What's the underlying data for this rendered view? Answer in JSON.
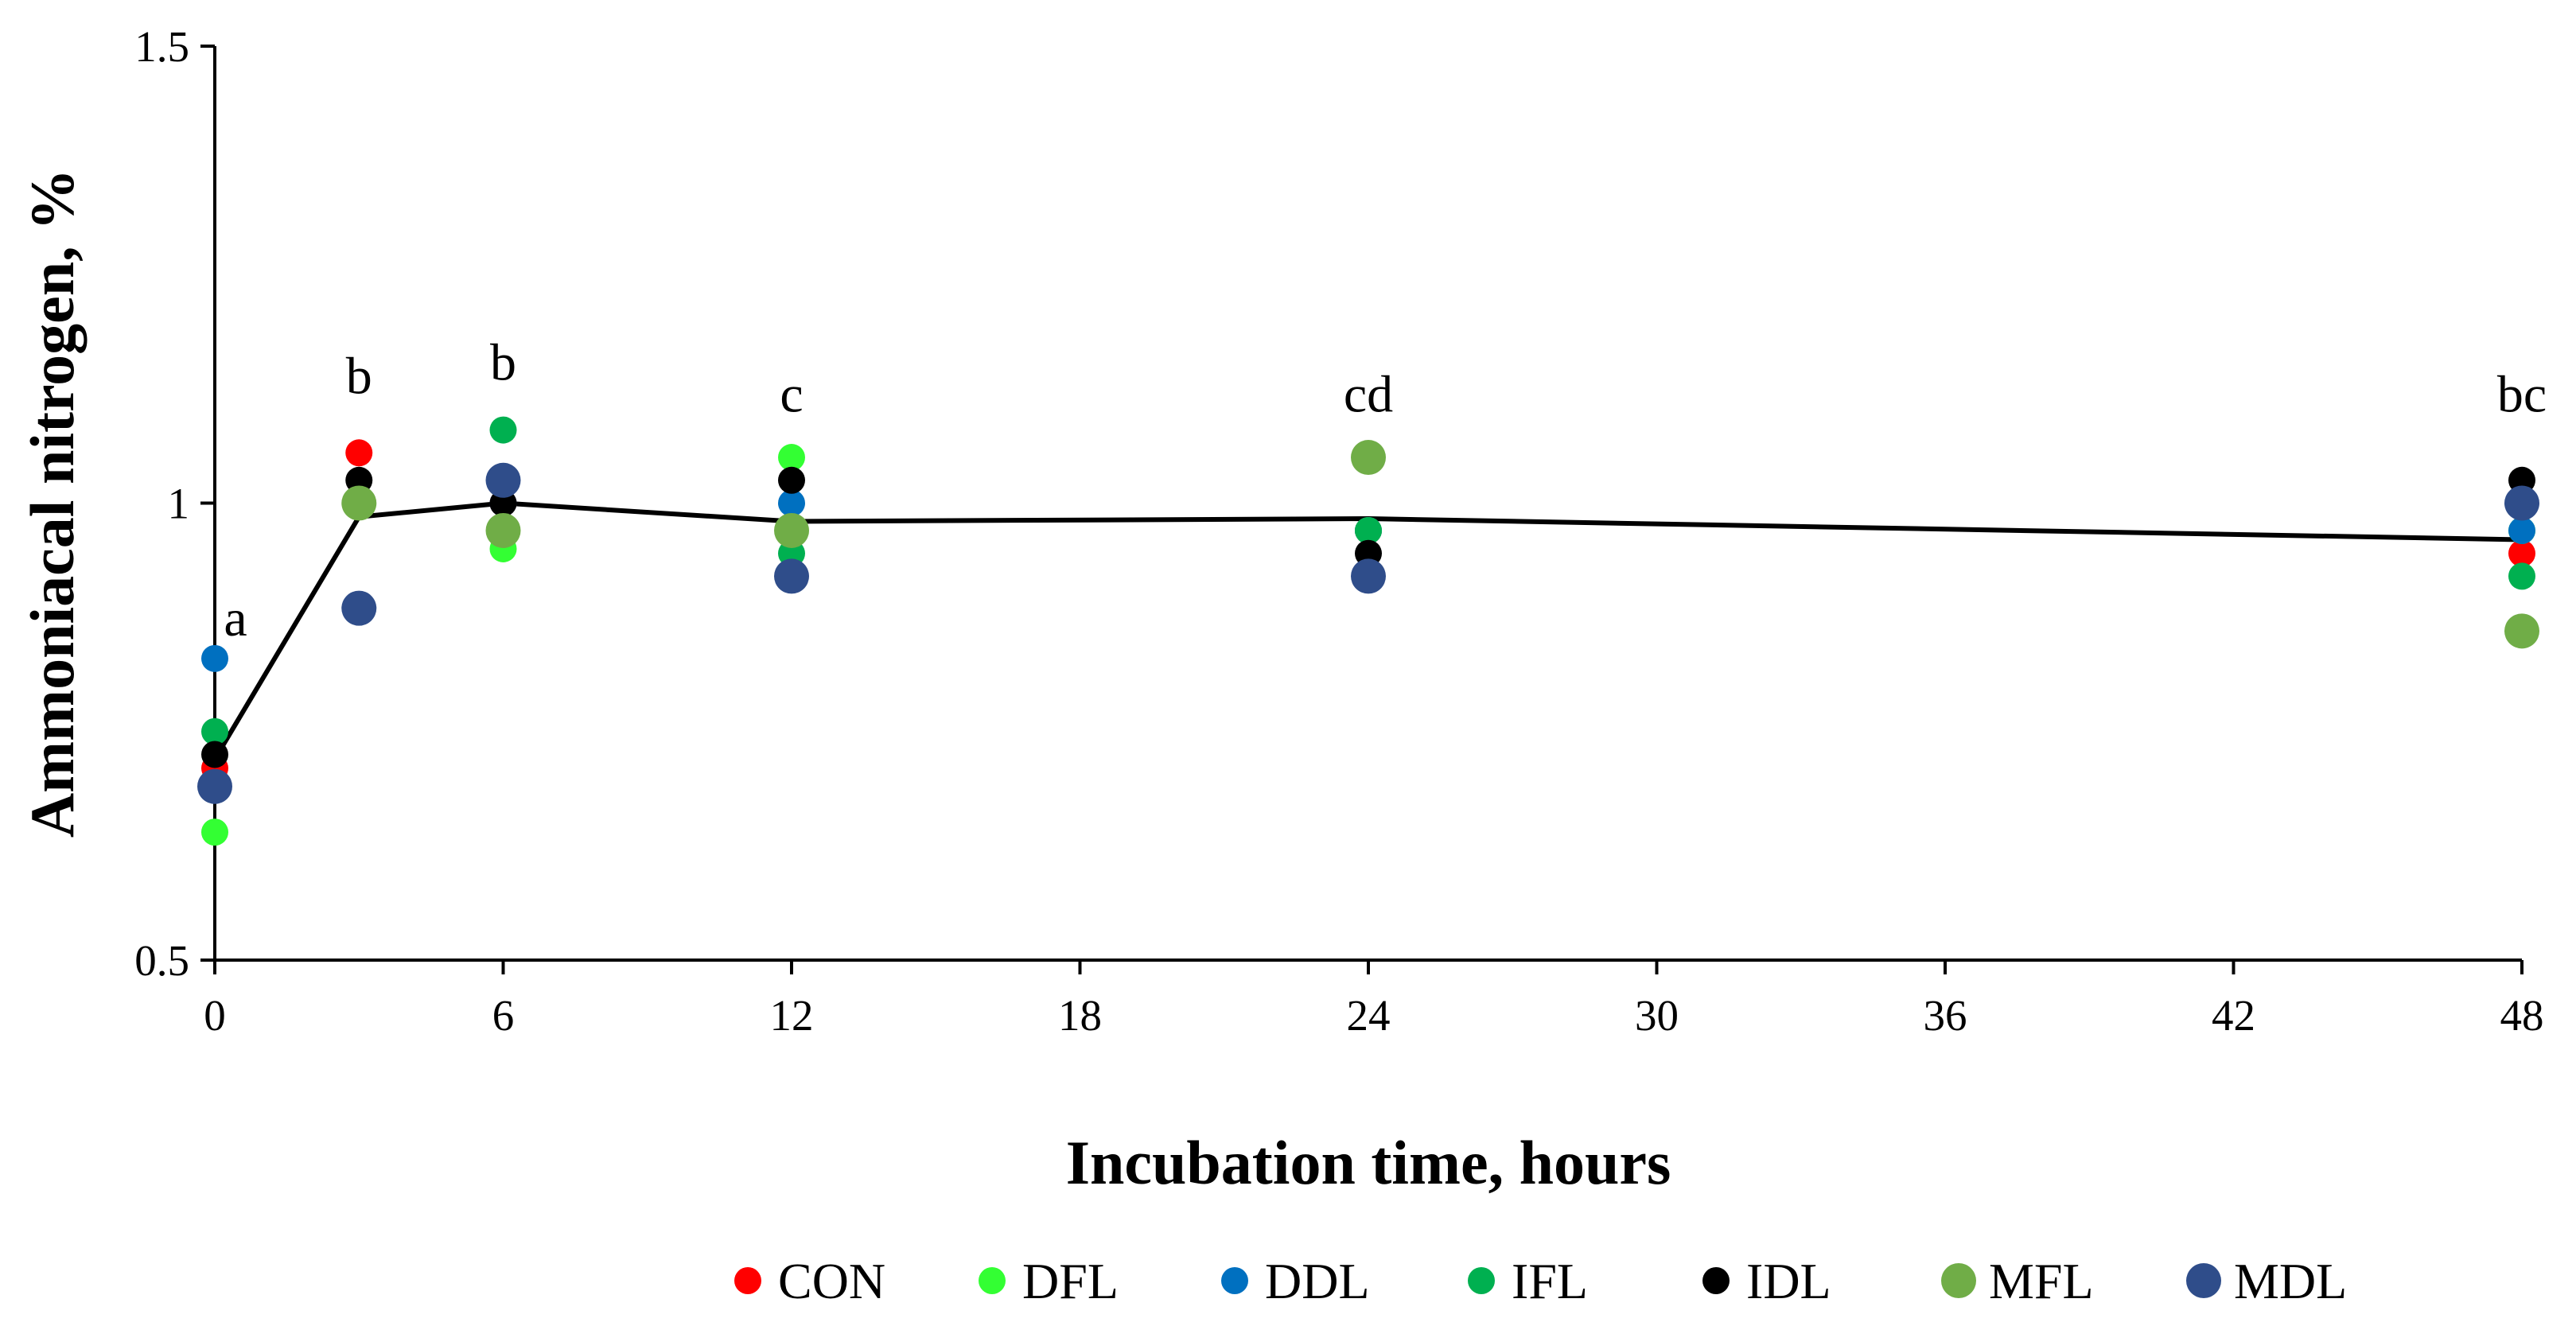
{
  "chart_data": {
    "type": "scatter",
    "xlabel": "Incubation time, hours",
    "ylabel": "Ammoniacal nitrogen, %",
    "xlim": [
      0,
      48
    ],
    "ylim": [
      0.5,
      1.5
    ],
    "x_ticks": [
      "0",
      "6",
      "12",
      "18",
      "24",
      "30",
      "36",
      "42",
      "48"
    ],
    "y_ticks": [
      "0.5",
      "1",
      "1.5"
    ],
    "grid": false,
    "legend_position": "bottom",
    "mean_line": {
      "x": [
        0,
        3,
        6,
        12,
        24,
        48
      ],
      "y": [
        0.72,
        0.985,
        1.0,
        0.98,
        0.983,
        0.96
      ],
      "color": "#000000"
    },
    "annotations": [
      {
        "x": 0,
        "y": 0.855,
        "text": "a"
      },
      {
        "x": 3,
        "y": 1.12,
        "text": "b"
      },
      {
        "x": 6,
        "y": 1.135,
        "text": "b"
      },
      {
        "x": 12,
        "y": 1.1,
        "text": "c"
      },
      {
        "x": 24,
        "y": 1.1,
        "text": "cd"
      },
      {
        "x": 48,
        "y": 1.1,
        "text": "bc"
      }
    ],
    "series": [
      {
        "name": "CON",
        "color": "#ff0000",
        "size": "small",
        "x": [
          0,
          3,
          6,
          12,
          24,
          48
        ],
        "y": [
          0.71,
          1.055,
          1.0,
          0.97,
          0.97,
          0.945
        ]
      },
      {
        "name": "DFL",
        "color": "#33ff33",
        "size": "small",
        "x": [
          0,
          3,
          6,
          12,
          24,
          48
        ],
        "y": [
          0.64,
          1.0,
          0.95,
          1.05,
          0.97,
          0.97
        ]
      },
      {
        "name": "DDL",
        "color": "#0070c0",
        "size": "small",
        "x": [
          0,
          3,
          6,
          12,
          24,
          48
        ],
        "y": [
          0.83,
          1.0,
          1.0,
          1.0,
          0.97,
          0.97
        ]
      },
      {
        "name": "IFL",
        "color": "#00b050",
        "size": "small",
        "x": [
          0,
          3,
          6,
          12,
          24,
          48
        ],
        "y": [
          0.75,
          1.0,
          1.08,
          0.945,
          0.97,
          0.92
        ]
      },
      {
        "name": "IDL",
        "color": "#000000",
        "size": "small",
        "x": [
          0,
          3,
          6,
          12,
          24,
          48
        ],
        "y": [
          0.725,
          1.025,
          1.0,
          1.025,
          0.945,
          1.025
        ]
      },
      {
        "name": "MFL",
        "color": "#70ad47",
        "size": "large",
        "x": [
          3,
          6,
          12,
          24,
          48
        ],
        "y": [
          1.0,
          0.97,
          0.97,
          1.05,
          0.86
        ]
      },
      {
        "name": "MDL",
        "color": "#2f4d8a",
        "size": "large",
        "x": [
          0,
          3,
          6,
          12,
          24,
          48
        ],
        "y": [
          0.69,
          0.885,
          1.025,
          0.92,
          0.92,
          1.0
        ]
      }
    ]
  }
}
